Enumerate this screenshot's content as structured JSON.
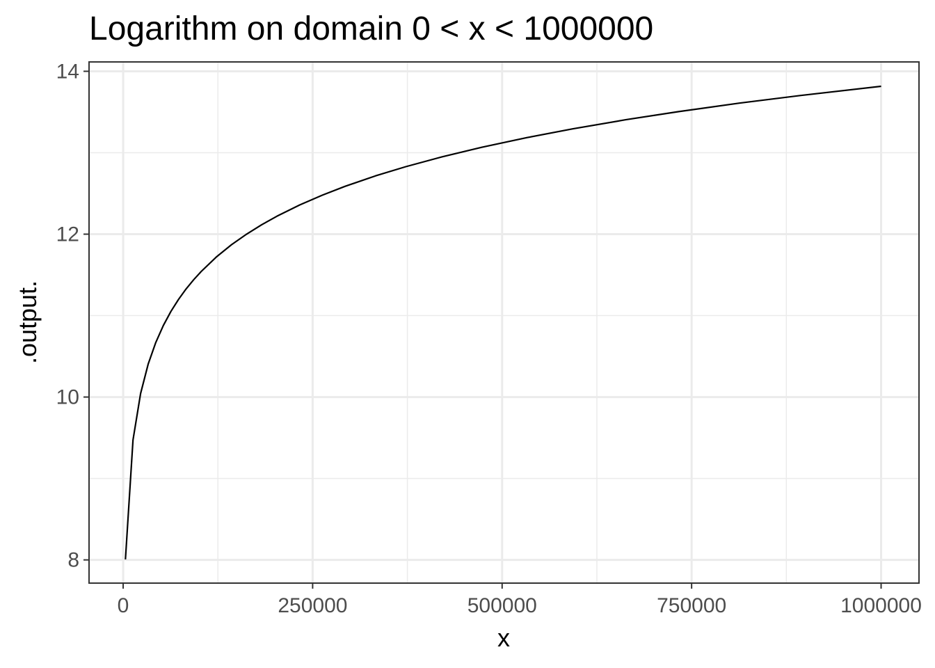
{
  "chart_data": {
    "type": "line",
    "title": "Logarithm on domain 0 < x < 1000000",
    "xlabel": "x",
    "ylabel": ".output.",
    "xlim": [
      -45000,
      1050000
    ],
    "ylim": [
      7.715,
      14.115
    ],
    "x_ticks": [
      0,
      250000,
      500000,
      750000,
      1000000
    ],
    "x_tick_labels": [
      "0",
      "250000",
      "500000",
      "750000",
      "1000000"
    ],
    "x_minor_ticks": [
      125000,
      375000,
      625000,
      875000
    ],
    "y_ticks": [
      8,
      10,
      12,
      14
    ],
    "y_tick_labels": [
      "8",
      "10",
      "12",
      "14"
    ],
    "y_minor_ticks": [
      9,
      11,
      13
    ],
    "grid": true,
    "series": [
      {
        "function": "ln(x)",
        "color": "#000000",
        "x": [
          3000,
          13000,
          23000,
          33000,
          43000,
          53000,
          63000,
          73000,
          83000,
          93000,
          103000,
          123000,
          143000,
          163000,
          183000,
          203000,
          233000,
          263000,
          293000,
          333000,
          373000,
          423000,
          473000,
          533000,
          593000,
          663000,
          733000,
          813000,
          893000,
          1000000
        ],
        "y": [
          8.006,
          9.473,
          10.043,
          10.404,
          10.669,
          10.878,
          11.051,
          11.198,
          11.327,
          11.44,
          11.542,
          11.72,
          11.871,
          12.001,
          12.117,
          12.221,
          12.359,
          12.48,
          12.588,
          12.716,
          12.829,
          12.955,
          13.067,
          13.186,
          13.293,
          13.405,
          13.505,
          13.609,
          13.702,
          13.816
        ]
      }
    ],
    "colors": {
      "background": "#ffffff",
      "panel_border": "#333333",
      "grid_major": "#ebebeb",
      "grid_minor": "#ebebeb",
      "tick_text": "#4d4d4d",
      "line": "#000000"
    }
  }
}
